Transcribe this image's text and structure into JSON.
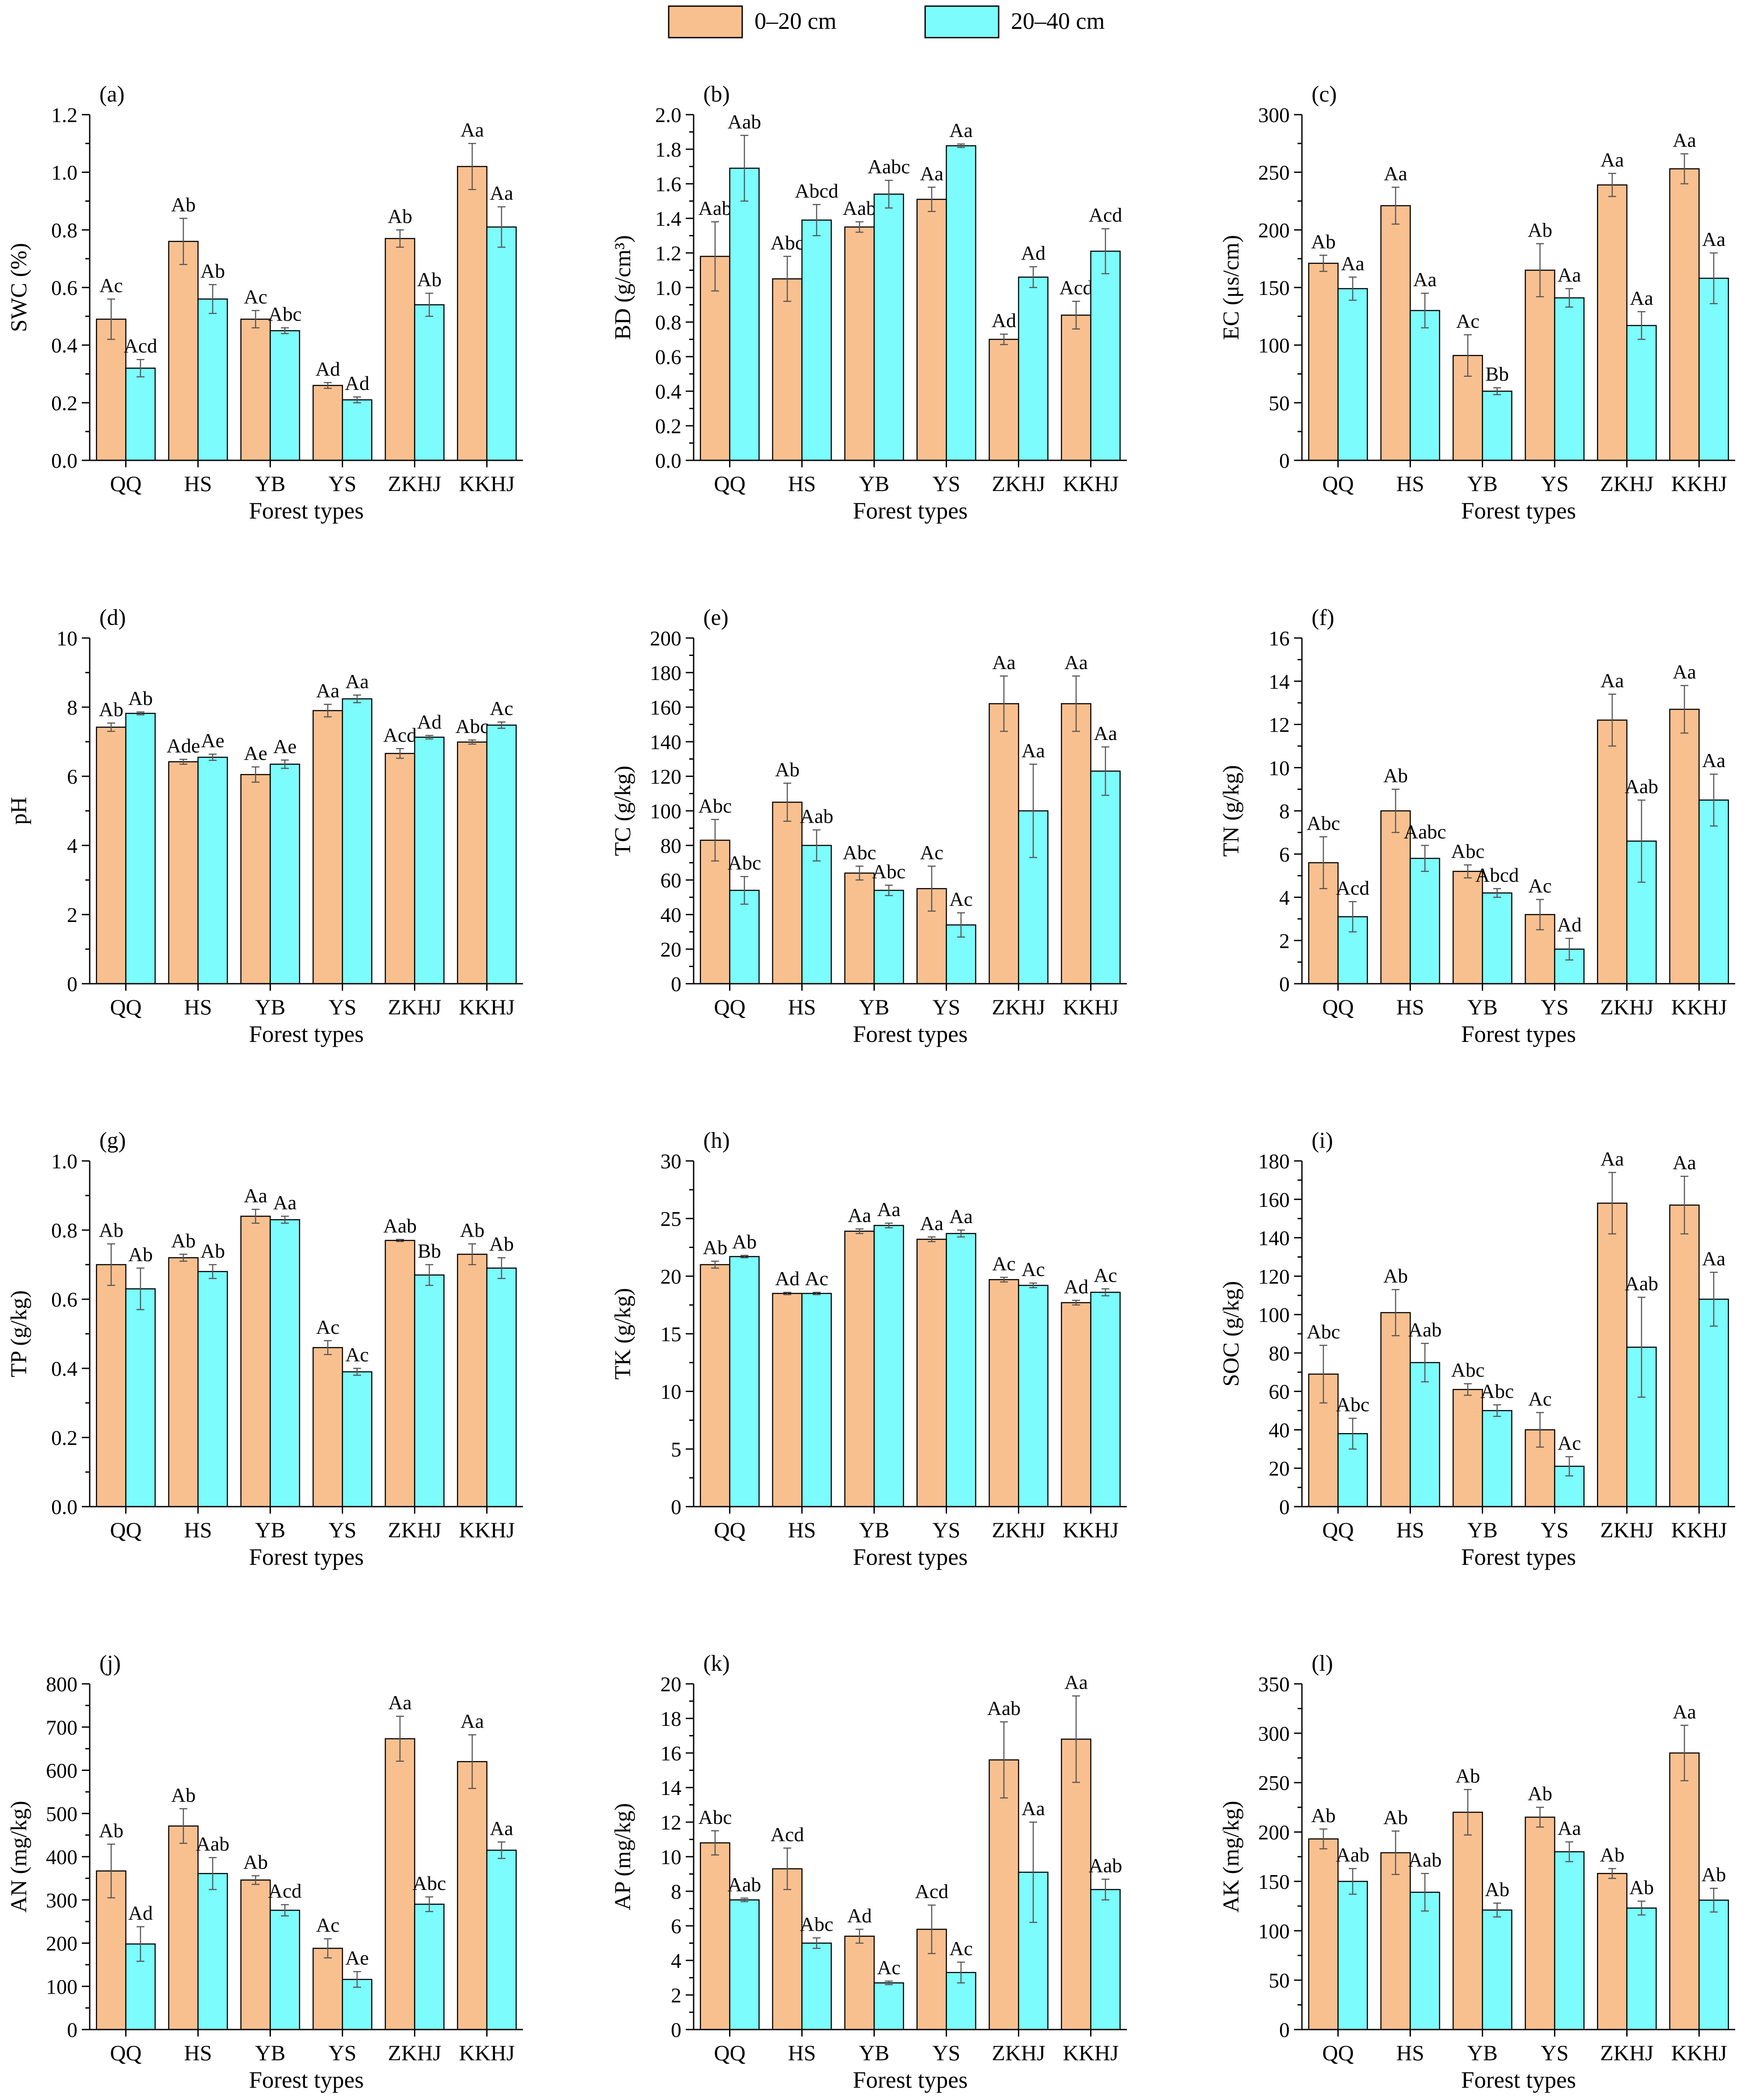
{
  "legend": [
    {
      "label": "0–20 cm",
      "color": "#F9C08F"
    },
    {
      "label": "20–40 cm",
      "color": "#7CFCFC"
    }
  ],
  "colors": {
    "bar_top": "#F9C08F",
    "bar_sub": "#7CFCFC",
    "stroke": "#000000",
    "error": "#555555"
  },
  "chart_data": [
    {
      "type": "bar",
      "panel": "(a)",
      "ylabel": "SWC (%)",
      "xlabel": "Forest types",
      "categories": [
        "QQ",
        "HS",
        "YB",
        "YS",
        "ZKHJ",
        "KKHJ"
      ],
      "ylim": [
        0,
        1.2
      ],
      "yticks": [
        "0.0",
        "0.2",
        "0.4",
        "0.6",
        "0.8",
        "1.0",
        "1.2"
      ],
      "series": [
        {
          "name": "0–20 cm",
          "values": [
            0.49,
            0.76,
            0.49,
            0.26,
            0.77,
            1.02
          ],
          "errors": [
            0.07,
            0.08,
            0.03,
            0.01,
            0.03,
            0.08
          ],
          "letters": [
            "Ac",
            "Ab",
            "Ac",
            "Ad",
            "Ab",
            "Aa"
          ]
        },
        {
          "name": "20–40 cm",
          "values": [
            0.32,
            0.56,
            0.45,
            0.21,
            0.54,
            0.81
          ],
          "errors": [
            0.03,
            0.05,
            0.01,
            0.01,
            0.04,
            0.07
          ],
          "letters": [
            "Acd",
            "Ab",
            "Abc",
            "Ad",
            "Ab",
            "Aa"
          ]
        }
      ]
    },
    {
      "type": "bar",
      "panel": "(b)",
      "ylabel": "BD (g/cm³)",
      "xlabel": "Forest types",
      "categories": [
        "QQ",
        "HS",
        "YB",
        "YS",
        "ZKHJ",
        "KKHJ"
      ],
      "ylim": [
        0,
        2.0
      ],
      "yticks": [
        "0.0",
        "0.2",
        "0.4",
        "0.6",
        "0.8",
        "1.0",
        "1.2",
        "1.4",
        "1.6",
        "1.8",
        "2.0"
      ],
      "series": [
        {
          "name": "0–20 cm",
          "values": [
            1.18,
            1.05,
            1.35,
            1.51,
            0.7,
            0.84
          ],
          "errors": [
            0.2,
            0.13,
            0.03,
            0.07,
            0.03,
            0.08
          ],
          "letters": [
            "Aab",
            "Abc",
            "Aab",
            "Aa",
            "Ad",
            "Acd"
          ]
        },
        {
          "name": "20–40 cm",
          "values": [
            1.69,
            1.39,
            1.54,
            1.82,
            1.06,
            1.21
          ],
          "errors": [
            0.19,
            0.09,
            0.08,
            0.01,
            0.06,
            0.13
          ],
          "letters": [
            "Aab",
            "Abcd",
            "Aabc",
            "Aa",
            "Ad",
            "Acd"
          ]
        }
      ]
    },
    {
      "type": "bar",
      "panel": "(c)",
      "ylabel": "EC (μs/cm)",
      "xlabel": "Forest types",
      "categories": [
        "QQ",
        "HS",
        "YB",
        "YS",
        "ZKHJ",
        "KKHJ"
      ],
      "ylim": [
        0,
        300
      ],
      "yticks": [
        "0",
        "50",
        "100",
        "150",
        "200",
        "250",
        "300"
      ],
      "series": [
        {
          "name": "0–20 cm",
          "values": [
            171,
            221,
            91,
            165,
            239,
            253
          ],
          "errors": [
            7,
            16,
            18,
            23,
            10,
            13
          ],
          "letters": [
            "Ab",
            "Aa",
            "Ac",
            "Ab",
            "Aa",
            "Aa"
          ]
        },
        {
          "name": "20–40 cm",
          "values": [
            149,
            130,
            60,
            141,
            117,
            158
          ],
          "errors": [
            10,
            15,
            3,
            8,
            12,
            22
          ],
          "letters": [
            "Aa",
            "Aa",
            "Bb",
            "Aa",
            "Aa",
            "Aa"
          ]
        }
      ]
    },
    {
      "type": "bar",
      "panel": "(d)",
      "ylabel": "pH",
      "xlabel": "Forest types",
      "categories": [
        "QQ",
        "HS",
        "YB",
        "YS",
        "ZKHJ",
        "KKHJ"
      ],
      "ylim": [
        0,
        10
      ],
      "yticks": [
        "0",
        "2",
        "4",
        "6",
        "8",
        "10"
      ],
      "series": [
        {
          "name": "0–20 cm",
          "values": [
            7.42,
            6.42,
            6.05,
            7.9,
            6.66,
            6.99
          ],
          "errors": [
            0.12,
            0.07,
            0.22,
            0.18,
            0.14,
            0.06
          ],
          "letters": [
            "Ab",
            "Ade",
            "Ae",
            "Aa",
            "Acd",
            "Abc"
          ]
        },
        {
          "name": "20–40 cm",
          "values": [
            7.82,
            6.55,
            6.35,
            8.24,
            7.13,
            7.48
          ],
          "errors": [
            0.04,
            0.09,
            0.12,
            0.11,
            0.05,
            0.09
          ],
          "letters": [
            "Ab",
            "Ae",
            "Ae",
            "Aa",
            "Ad",
            "Ac"
          ]
        }
      ]
    },
    {
      "type": "bar",
      "panel": "(e)",
      "ylabel": "TC (g/kg)",
      "xlabel": "Forest types",
      "categories": [
        "QQ",
        "HS",
        "YB",
        "YS",
        "ZKHJ",
        "KKHJ"
      ],
      "ylim": [
        0,
        200
      ],
      "yticks": [
        "0",
        "20",
        "40",
        "60",
        "80",
        "100",
        "120",
        "140",
        "160",
        "180",
        "200"
      ],
      "series": [
        {
          "name": "0–20 cm",
          "values": [
            83,
            105,
            64,
            55,
            162,
            162
          ],
          "errors": [
            12,
            11,
            4,
            13,
            16,
            16
          ],
          "letters": [
            "Abc",
            "Ab",
            "Abc",
            "Ac",
            "Aa",
            "Aa"
          ]
        },
        {
          "name": "20–40 cm",
          "values": [
            54,
            80,
            54,
            34,
            100,
            123
          ],
          "errors": [
            8,
            9,
            3,
            7,
            27,
            14
          ],
          "letters": [
            "Abc",
            "Aab",
            "Abc",
            "Ac",
            "Aa",
            "Aa"
          ]
        }
      ]
    },
    {
      "type": "bar",
      "panel": "(f)",
      "ylabel": "TN (g/kg)",
      "xlabel": "Forest types",
      "categories": [
        "QQ",
        "HS",
        "YB",
        "YS",
        "ZKHJ",
        "KKHJ"
      ],
      "ylim": [
        0,
        16
      ],
      "yticks": [
        "0",
        "2",
        "4",
        "6",
        "8",
        "10",
        "12",
        "14",
        "16"
      ],
      "series": [
        {
          "name": "0–20 cm",
          "values": [
            5.6,
            8.0,
            5.2,
            3.2,
            12.2,
            12.7
          ],
          "errors": [
            1.2,
            1.0,
            0.3,
            0.7,
            1.2,
            1.1
          ],
          "letters": [
            "Abc",
            "Ab",
            "Abc",
            "Ac",
            "Aa",
            "Aa"
          ]
        },
        {
          "name": "20–40 cm",
          "values": [
            3.1,
            5.8,
            4.2,
            1.6,
            6.6,
            8.5
          ],
          "errors": [
            0.7,
            0.6,
            0.2,
            0.5,
            1.9,
            1.2
          ],
          "letters": [
            "Acd",
            "Aabc",
            "Abcd",
            "Ad",
            "Aab",
            "Aa"
          ]
        }
      ]
    },
    {
      "type": "bar",
      "panel": "(g)",
      "ylabel": "TP (g/kg)",
      "xlabel": "Forest types",
      "categories": [
        "QQ",
        "HS",
        "YB",
        "YS",
        "ZKHJ",
        "KKHJ"
      ],
      "ylim": [
        0,
        1.0
      ],
      "yticks": [
        "0.0",
        "0.2",
        "0.4",
        "0.6",
        "0.8",
        "1.0"
      ],
      "series": [
        {
          "name": "0–20 cm",
          "values": [
            0.7,
            0.72,
            0.84,
            0.46,
            0.77,
            0.73
          ],
          "errors": [
            0.06,
            0.01,
            0.02,
            0.02,
            0.003,
            0.03
          ],
          "letters": [
            "Ab",
            "Ab",
            "Aa",
            "Ac",
            "Aab",
            "Ab"
          ]
        },
        {
          "name": "20–40 cm",
          "values": [
            0.63,
            0.68,
            0.83,
            0.39,
            0.67,
            0.69
          ],
          "errors": [
            0.06,
            0.02,
            0.01,
            0.01,
            0.03,
            0.03
          ],
          "letters": [
            "Ab",
            "Ab",
            "Aa",
            "Ac",
            "Bb",
            "Ab"
          ]
        }
      ]
    },
    {
      "type": "bar",
      "panel": "(h)",
      "ylabel": "TK (g/kg)",
      "xlabel": "Forest types",
      "categories": [
        "QQ",
        "HS",
        "YB",
        "YS",
        "ZKHJ",
        "KKHJ"
      ],
      "ylim": [
        0,
        30
      ],
      "yticks": [
        "0",
        "5",
        "10",
        "15",
        "20",
        "25",
        "30"
      ],
      "series": [
        {
          "name": "0–20 cm",
          "values": [
            21.0,
            18.5,
            23.9,
            23.2,
            19.7,
            17.7
          ],
          "errors": [
            0.3,
            0.1,
            0.2,
            0.2,
            0.2,
            0.2
          ],
          "letters": [
            "Ab",
            "Ad",
            "Aa",
            "Aa",
            "Ac",
            "Ad"
          ]
        },
        {
          "name": "20–40 cm",
          "values": [
            21.7,
            18.5,
            24.4,
            23.7,
            19.2,
            18.6
          ],
          "errors": [
            0.1,
            0.1,
            0.2,
            0.3,
            0.2,
            0.3
          ],
          "letters": [
            "Ab",
            "Ac",
            "Aa",
            "Aa",
            "Ac",
            "Ac"
          ]
        }
      ]
    },
    {
      "type": "bar",
      "panel": "(i)",
      "ylabel": "SOC (g/kg)",
      "xlabel": "Forest types",
      "categories": [
        "QQ",
        "HS",
        "YB",
        "YS",
        "ZKHJ",
        "KKHJ"
      ],
      "ylim": [
        0,
        180
      ],
      "yticks": [
        "0",
        "20",
        "40",
        "60",
        "80",
        "100",
        "120",
        "140",
        "160",
        "180"
      ],
      "series": [
        {
          "name": "0–20 cm",
          "values": [
            69,
            101,
            61,
            40,
            158,
            157
          ],
          "errors": [
            15,
            12,
            3,
            9,
            16,
            15
          ],
          "letters": [
            "Abc",
            "Ab",
            "Abc",
            "Ac",
            "Aa",
            "Aa"
          ]
        },
        {
          "name": "20–40 cm",
          "values": [
            38,
            75,
            50,
            21,
            83,
            108
          ],
          "errors": [
            8,
            10,
            3,
            5,
            26,
            14
          ],
          "letters": [
            "Abc",
            "Aab",
            "Abc",
            "Ac",
            "Aab",
            "Aa"
          ]
        }
      ]
    },
    {
      "type": "bar",
      "panel": "(j)",
      "ylabel": "AN (mg/kg)",
      "xlabel": "Forest types",
      "categories": [
        "QQ",
        "HS",
        "YB",
        "YS",
        "ZKHJ",
        "KKHJ"
      ],
      "ylim": [
        0,
        800
      ],
      "yticks": [
        "0",
        "100",
        "200",
        "300",
        "400",
        "500",
        "600",
        "700",
        "800"
      ],
      "series": [
        {
          "name": "0–20 cm",
          "values": [
            367,
            471,
            346,
            188,
            673,
            620
          ],
          "errors": [
            62,
            40,
            10,
            22,
            52,
            62
          ],
          "letters": [
            "Ab",
            "Ab",
            "Ab",
            "Ac",
            "Aa",
            "Aa"
          ]
        },
        {
          "name": "20–40 cm",
          "values": [
            198,
            361,
            276,
            116,
            290,
            415
          ],
          "errors": [
            40,
            37,
            13,
            18,
            17,
            19
          ],
          "letters": [
            "Ad",
            "Aab",
            "Acd",
            "Ae",
            "Abc",
            "Aa"
          ]
        }
      ]
    },
    {
      "type": "bar",
      "panel": "(k)",
      "ylabel": "AP (mg/kg)",
      "xlabel": "Forest types",
      "categories": [
        "QQ",
        "HS",
        "YB",
        "YS",
        "ZKHJ",
        "KKHJ"
      ],
      "ylim": [
        0,
        20
      ],
      "yticks": [
        "0",
        "2",
        "4",
        "6",
        "8",
        "10",
        "12",
        "14",
        "16",
        "18",
        "20"
      ],
      "series": [
        {
          "name": "0–20 cm",
          "values": [
            10.8,
            9.3,
            5.4,
            5.8,
            15.6,
            16.8
          ],
          "errors": [
            0.7,
            1.2,
            0.4,
            1.4,
            2.2,
            2.5
          ],
          "letters": [
            "Abc",
            "Acd",
            "Ad",
            "Acd",
            "Aab",
            "Aa"
          ]
        },
        {
          "name": "20–40 cm",
          "values": [
            7.5,
            5.0,
            2.7,
            3.3,
            9.1,
            8.1
          ],
          "errors": [
            0.1,
            0.3,
            0.1,
            0.6,
            2.9,
            0.6
          ],
          "letters": [
            "Aab",
            "Abc",
            "Ac",
            "Ac",
            "Aa",
            "Aab"
          ]
        }
      ]
    },
    {
      "type": "bar",
      "panel": "(l)",
      "ylabel": "AK (mg/kg)",
      "xlabel": "Forest types",
      "categories": [
        "QQ",
        "HS",
        "YB",
        "YS",
        "ZKHJ",
        "KKHJ"
      ],
      "ylim": [
        0,
        350
      ],
      "yticks": [
        "0",
        "50",
        "100",
        "150",
        "200",
        "250",
        "300",
        "350"
      ],
      "series": [
        {
          "name": "0–20 cm",
          "values": [
            193,
            179,
            220,
            215,
            158,
            280
          ],
          "errors": [
            10,
            22,
            23,
            10,
            5,
            28
          ],
          "letters": [
            "Ab",
            "Ab",
            "Ab",
            "Ab",
            "Ab",
            "Aa"
          ]
        },
        {
          "name": "20–40 cm",
          "values": [
            150,
            139,
            121,
            180,
            123,
            131
          ],
          "errors": [
            13,
            19,
            7,
            10,
            7,
            12
          ],
          "letters": [
            "Aab",
            "Aab",
            "Ab",
            "Aa",
            "Ab",
            "Ab"
          ]
        }
      ]
    }
  ]
}
